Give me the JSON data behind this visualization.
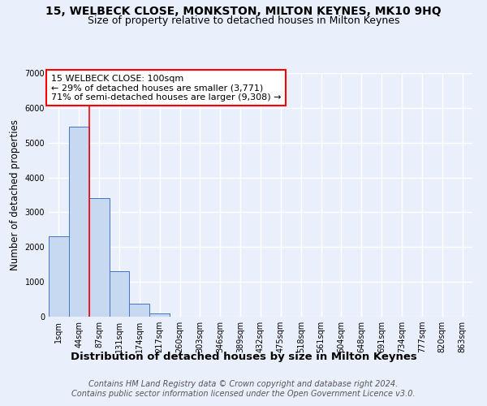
{
  "title": "15, WELBECK CLOSE, MONKSTON, MILTON KEYNES, MK10 9HQ",
  "subtitle": "Size of property relative to detached houses in Milton Keynes",
  "xlabel": "Distribution of detached houses by size in Milton Keynes",
  "ylabel": "Number of detached properties",
  "footer_line1": "Contains HM Land Registry data © Crown copyright and database right 2024.",
  "footer_line2": "Contains public sector information licensed under the Open Government Licence v3.0.",
  "categories": [
    "1sqm",
    "44sqm",
    "87sqm",
    "131sqm",
    "174sqm",
    "217sqm",
    "260sqm",
    "303sqm",
    "346sqm",
    "389sqm",
    "432sqm",
    "475sqm",
    "518sqm",
    "561sqm",
    "604sqm",
    "648sqm",
    "691sqm",
    "734sqm",
    "777sqm",
    "820sqm",
    "863sqm"
  ],
  "bar_values": [
    2300,
    5450,
    3400,
    1300,
    380,
    100,
    0,
    0,
    0,
    0,
    0,
    0,
    0,
    0,
    0,
    0,
    0,
    0,
    0,
    0,
    0
  ],
  "bar_color": "#c6d9f1",
  "bar_edge_color": "#4472c4",
  "ylim": [
    0,
    7000
  ],
  "yticks": [
    0,
    1000,
    2000,
    3000,
    4000,
    5000,
    6000,
    7000
  ],
  "property_label": "15 WELBECK CLOSE: 100sqm",
  "pct_smaller": 29,
  "pct_smaller_count": 3771,
  "pct_larger": 71,
  "pct_larger_count": 9308,
  "vline_x": 1.5,
  "background_color": "#eaf0fb",
  "plot_bg_color": "#eaf0fb",
  "grid_color": "#ffffff",
  "title_fontsize": 10,
  "subtitle_fontsize": 9,
  "xlabel_fontsize": 9.5,
  "ylabel_fontsize": 8.5,
  "tick_fontsize": 7,
  "annotation_fontsize": 8,
  "footer_fontsize": 7
}
